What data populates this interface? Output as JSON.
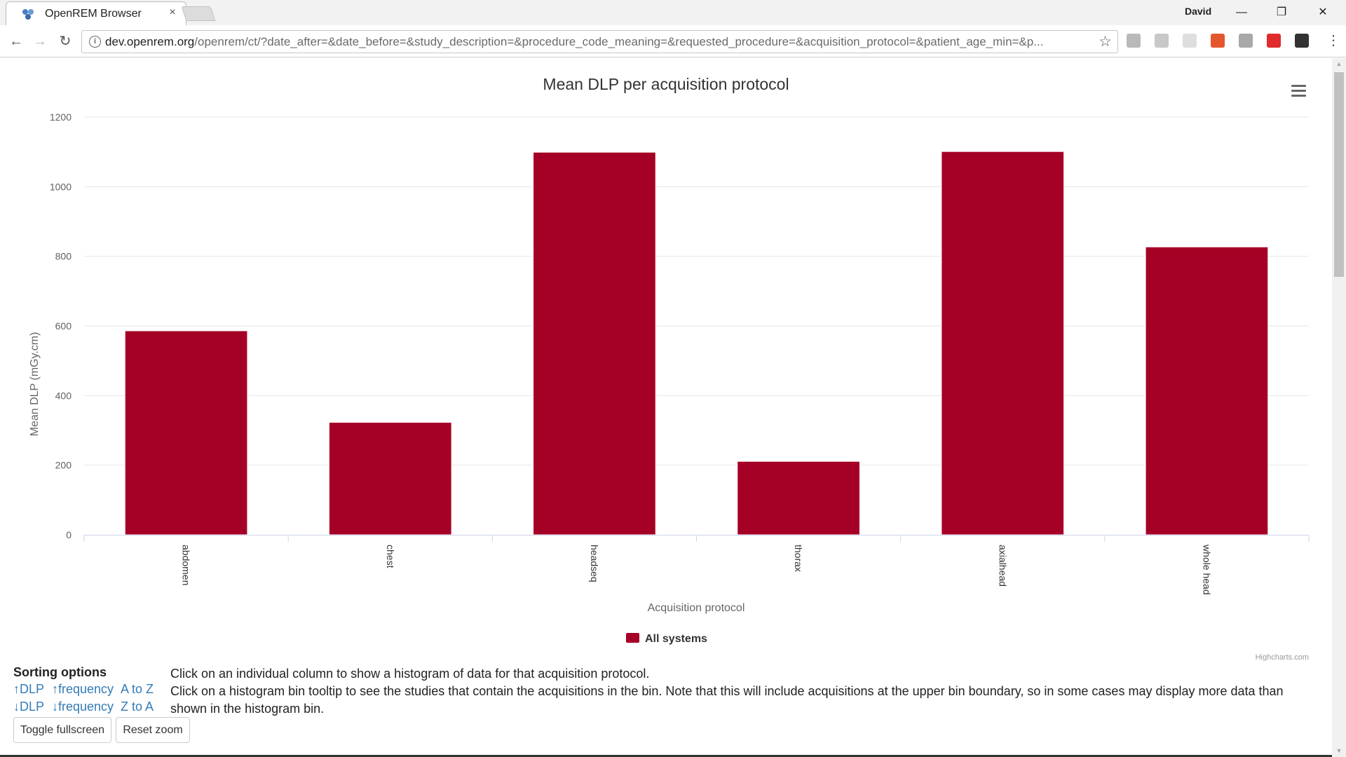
{
  "browser": {
    "tab_title": "OpenREM Browser",
    "tab_close": "×",
    "profile_name": "David",
    "url_host": "dev.openrem.org",
    "url_path": "/openrem/ct/?date_after=&date_before=&study_description=&procedure_code_meaning=&requested_procedure=&acquisition_protocol=&patient_age_min=&p...",
    "info_glyph": "i",
    "star_glyph": "☆",
    "back_glyph": "←",
    "forward_glyph": "→",
    "reload_glyph": "↻",
    "minimize_glyph": "—",
    "restore_glyph": "❐",
    "close_glyph": "✕",
    "menu_glyph": "⋮",
    "extensions": [
      {
        "name": "drive-icon",
        "color": "#b9b9b9"
      },
      {
        "name": "pdf-icon",
        "color": "#c8c8c8"
      },
      {
        "name": "document-icon",
        "color": "#dedede"
      },
      {
        "name": "office-icon",
        "color": "#e4572e"
      },
      {
        "name": "note-icon",
        "color": "#a8a8a8"
      },
      {
        "name": "adblock-icon",
        "color": "#e02b2b"
      },
      {
        "name": "mask-icon",
        "color": "#333333"
      }
    ]
  },
  "chart_menu_glyph": "≡",
  "chart_data": {
    "type": "bar",
    "title": "Mean DLP per acquisition protocol",
    "xlabel": "Acquisition protocol",
    "ylabel": "Mean DLP (mGy.cm)",
    "ylim": [
      0,
      1200
    ],
    "yticks": [
      0,
      200,
      400,
      600,
      800,
      1000,
      1200
    ],
    "categories": [
      "abdomen",
      "chest",
      "headseq",
      "thorax",
      "axialhead",
      "whole head"
    ],
    "series": [
      {
        "name": "All systems",
        "color": "#a50026",
        "values": [
          586,
          323,
          1099,
          211,
          1101,
          827
        ]
      }
    ],
    "grid": true,
    "legend": "bottom-center",
    "credits": "Highcharts.com"
  },
  "sorting": {
    "title": "Sorting options",
    "links": [
      "↑DLP",
      "↑frequency",
      "A to Z",
      "↓DLP",
      "↓frequency",
      "Z to A"
    ]
  },
  "help": {
    "line1": "Click on an individual column to show a histogram of data for that acquisition protocol.",
    "line2": "Click on a histogram bin tooltip to see the studies that contain the acquisitions in the bin. Note that this will include acquisitions at the upper bin boundary, so in some cases may display more data than shown in the histogram bin."
  },
  "buttons": {
    "toggle_fullscreen": "Toggle fullscreen",
    "reset_zoom": "Reset zoom"
  }
}
